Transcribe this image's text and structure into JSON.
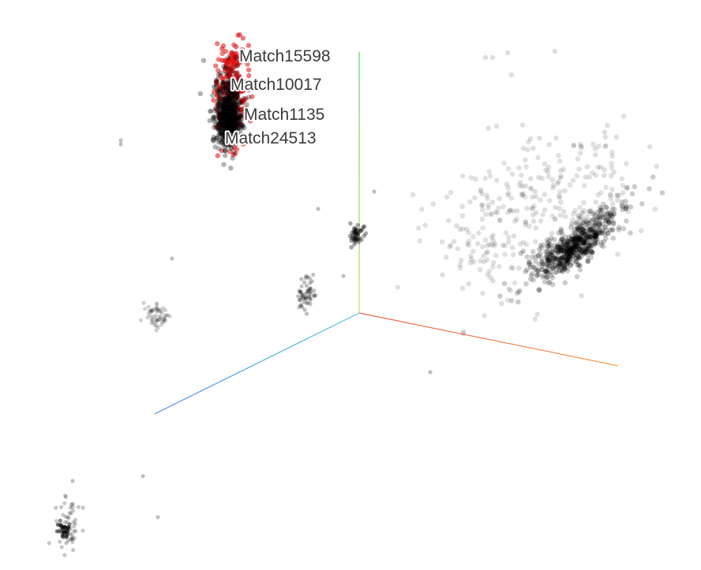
{
  "chart_data": {
    "type": "scatter",
    "title": "",
    "xlabel": "",
    "ylabel": "",
    "grid": false,
    "axis_colors": {
      "x": [
        "#f0a050",
        "#f06050"
      ],
      "y": [
        "#60d060",
        "#c0e060"
      ],
      "z": [
        "#5090e0",
        "#60c0e0"
      ]
    },
    "point_color": "#000000",
    "highlight_color": "#dd1111",
    "labeled_points": [
      {
        "label": "Match15598"
      },
      {
        "label": "Match10017"
      },
      {
        "label": "Match1135"
      },
      {
        "label": "Match24513"
      }
    ]
  }
}
